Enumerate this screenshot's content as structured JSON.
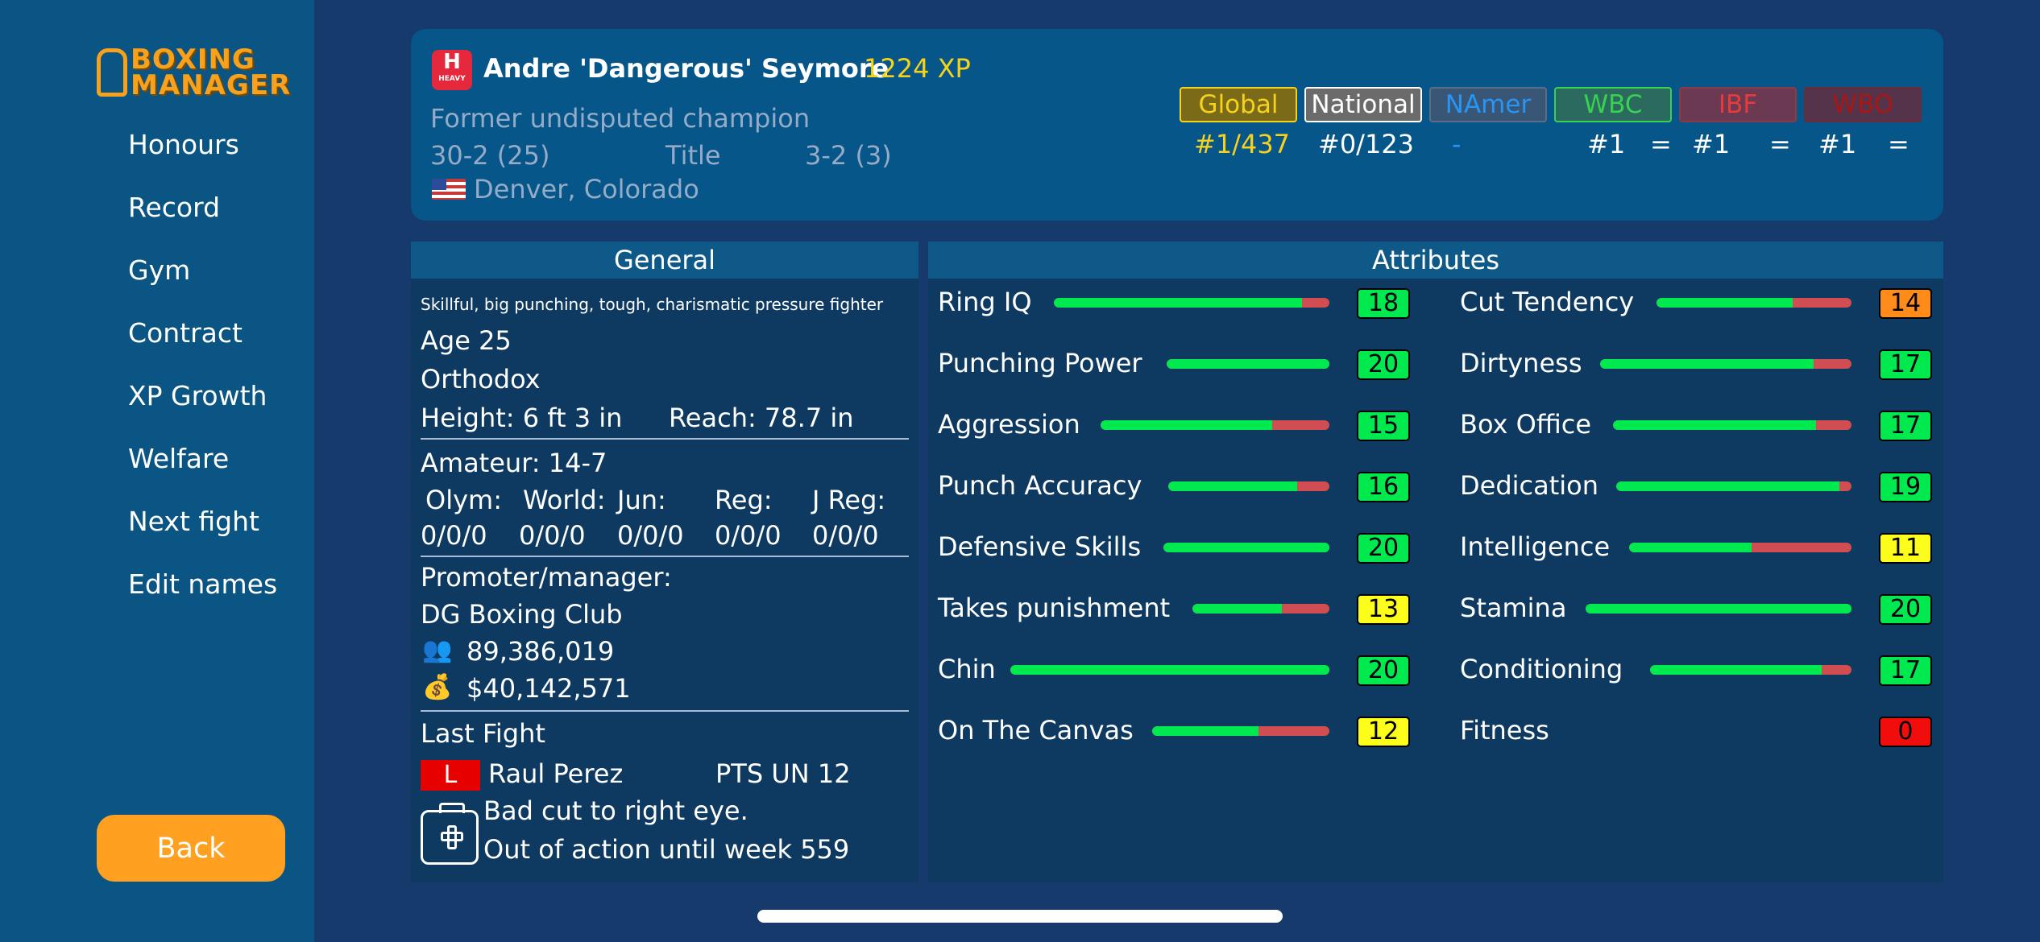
{
  "app": {
    "logo_line1": "BOXING",
    "logo_line2": "MANAGER"
  },
  "sidebar": {
    "items": [
      {
        "label": "Honours"
      },
      {
        "label": "Record"
      },
      {
        "label": "Gym"
      },
      {
        "label": "Contract"
      },
      {
        "label": "XP Growth"
      },
      {
        "label": "Welfare"
      },
      {
        "label": "Next fight"
      },
      {
        "label": "Edit names"
      }
    ],
    "back_label": "Back"
  },
  "header": {
    "weight_badge": "H",
    "weight_class": "HEAVY",
    "boxer_name": "Andre 'Dangerous' Seymore",
    "xp": "1224 XP",
    "status": "Former undisputed champion",
    "record": "30-2 (25)",
    "title_label": "Title",
    "title_record": "3-2 (3)",
    "hometown": "Denver, Colorado",
    "rankings": [
      {
        "label": "Global",
        "value": "#1/437",
        "eq": "",
        "color": "#f6d21b"
      },
      {
        "label": "National",
        "value": "#0/123",
        "eq": "",
        "color": "#ffffff"
      },
      {
        "label": "NAmer",
        "value": "-",
        "eq": "",
        "color": "#2596f6"
      },
      {
        "label": "WBC",
        "value": "#1",
        "eq": "=",
        "color": "#3ad150"
      },
      {
        "label": "IBF",
        "value": "#1",
        "eq": "=",
        "color": "#e93a3a"
      },
      {
        "label": "WBO",
        "value": "#1",
        "eq": "=",
        "color": "#a91616"
      }
    ]
  },
  "general": {
    "title": "General",
    "description": "Skillful, big punching, tough, charismatic pressure fighter",
    "age": "Age 25",
    "stance": "Orthodox",
    "height": "Height: 6 ft 3 in",
    "reach": "Reach: 78.7 in",
    "amateur": "Amateur: 14-7",
    "amateur_cols": [
      {
        "label": "Olym:",
        "value": "0/0/0"
      },
      {
        "label": "World:",
        "value": "0/0/0"
      },
      {
        "label": "Jun:",
        "value": "0/0/0"
      },
      {
        "label": "Reg:",
        "value": "0/0/0"
      },
      {
        "label": "J Reg:",
        "value": "0/0/0"
      }
    ],
    "promoter_label": "Promoter/manager:",
    "promoter": "DG Boxing Club",
    "fans": "89,386,019",
    "money": "$40,142,571",
    "last_fight_label": "Last Fight",
    "result": "L",
    "opponent": "Raul Perez",
    "method": "PTS UN 12",
    "injury": "Bad cut to right eye.",
    "out_until": "Out of action until week 559"
  },
  "attributes": {
    "title": "Attributes",
    "left": [
      {
        "label": "Ring IQ",
        "value": "18",
        "fill": 0.9,
        "badge": "#00e94f"
      },
      {
        "label": "Punching Power",
        "value": "20",
        "fill": 1.0,
        "badge": "#00e94f"
      },
      {
        "label": "Aggression",
        "value": "15",
        "fill": 0.75,
        "badge": "#00e94f"
      },
      {
        "label": "Punch Accuracy",
        "value": "16",
        "fill": 0.8,
        "badge": "#00e94f"
      },
      {
        "label": "Defensive Skills",
        "value": "20",
        "fill": 1.0,
        "badge": "#00e94f"
      },
      {
        "label": "Takes punishment",
        "value": "13",
        "fill": 0.65,
        "badge": "#fdfd1b"
      },
      {
        "label": "Chin",
        "value": "20",
        "fill": 1.0,
        "badge": "#00e94f"
      },
      {
        "label": "On The Canvas",
        "value": "12",
        "fill": 0.6,
        "badge": "#fdfd1b"
      }
    ],
    "right": [
      {
        "label": "Cut Tendency",
        "value": "14",
        "fill": 0.7,
        "badge": "#ff8c1a"
      },
      {
        "label": "Dirtyness",
        "value": "17",
        "fill": 0.85,
        "badge": "#00e94f"
      },
      {
        "label": "Box Office",
        "value": "17",
        "fill": 0.85,
        "badge": "#00e94f"
      },
      {
        "label": "Dedication",
        "value": "19",
        "fill": 0.95,
        "badge": "#00e94f"
      },
      {
        "label": "Intelligence",
        "value": "11",
        "fill": 0.55,
        "badge": "#fdfd1b"
      },
      {
        "label": "Stamina",
        "value": "20",
        "fill": 1.0,
        "badge": "#00e94f"
      },
      {
        "label": "Conditioning",
        "value": "17",
        "fill": 0.85,
        "badge": "#00e94f"
      },
      {
        "label": "Fitness",
        "value": "0",
        "fill": null,
        "badge": "#f20d0d"
      }
    ]
  }
}
